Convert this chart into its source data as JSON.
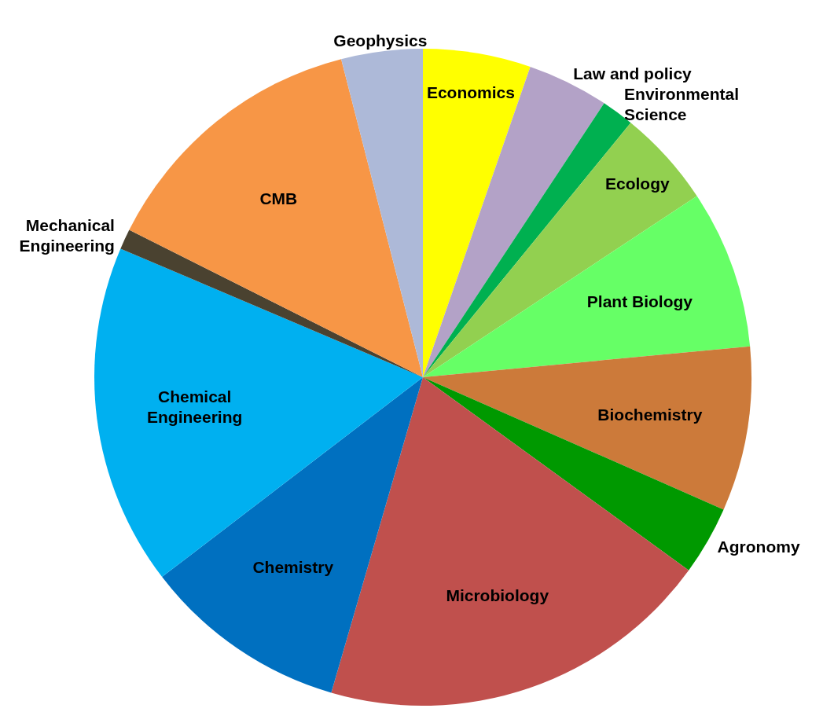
{
  "chart_data": {
    "type": "pie",
    "categories": [
      "Economics",
      "Law and policy",
      "Environmental Science",
      "Ecology",
      "Plant Biology",
      "Biochemistry",
      "Agronomy",
      "Microbiology",
      "Chemistry",
      "Chemical Engineering",
      "Mechanical Engineering",
      "CMB",
      "Geophysics"
    ],
    "values": [
      5.3,
      4.0,
      1.6,
      4.8,
      7.8,
      8.1,
      3.4,
      19.5,
      10.1,
      16.8,
      1.0,
      13.6,
      4.0
    ],
    "colors": [
      "#ffff00",
      "#b3a2c7",
      "#00b050",
      "#92d050",
      "#66ff66",
      "#cc7a3a",
      "#009900",
      "#c0504d",
      "#0070c0",
      "#00b0f0",
      "#4a4230",
      "#f79646",
      "#adb9d8"
    ],
    "legend": false
  }
}
